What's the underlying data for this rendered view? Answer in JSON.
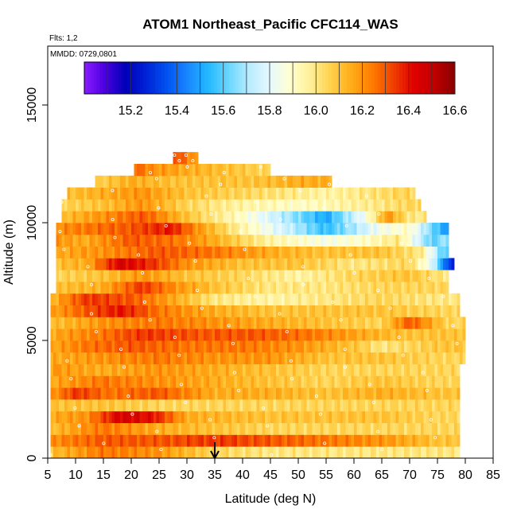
{
  "chart_data": {
    "type": "heatmap",
    "title": "ATOM1 Northeast_Pacific CFC114_WAS",
    "annotations": {
      "flights": "Flts: 1,2",
      "dates": "MMDD: 0729,0801"
    },
    "xlabel": "Latitude (deg N)",
    "ylabel": "Altitude (m)",
    "xlim": [
      5,
      85
    ],
    "ylim": [
      0,
      17500
    ],
    "xticks": [
      "5",
      "10",
      "15",
      "20",
      "25",
      "30",
      "35",
      "40",
      "45",
      "50",
      "55",
      "60",
      "65",
      "70",
      "75",
      "80",
      "85"
    ],
    "yticks": [
      "0",
      "5000",
      "10000",
      "15000"
    ],
    "colorbar": {
      "range": [
        15.0,
        16.6
      ],
      "ticks": [
        "15.2",
        "15.4",
        "15.6",
        "15.8",
        "16.0",
        "16.2",
        "16.4",
        "16.6"
      ],
      "colors": [
        "#8a1cff",
        "#4a00e0",
        "#0000b8",
        "#0022d8",
        "#0052f0",
        "#1a86ff",
        "#22b8ff",
        "#6ad6ff",
        "#b8ecff",
        "#e6f8ff",
        "#ffffd0",
        "#ffef96",
        "#ffd04a",
        "#ffac18",
        "#ff7a00",
        "#f04000",
        "#e00000",
        "#c00000",
        "#880000"
      ]
    },
    "marker": {
      "x": 35,
      "label": "arrow"
    },
    "row_height": 500,
    "rows": [
      {
        "y": 250,
        "x0": 5.5,
        "x1": 79,
        "k": [
          [
            5,
            16.1
          ],
          [
            15,
            16.25
          ],
          [
            25,
            16.2
          ],
          [
            35,
            16.05
          ],
          [
            45,
            16.0
          ],
          [
            55,
            16.0
          ],
          [
            65,
            16.0
          ],
          [
            75,
            16.0
          ]
        ]
      },
      {
        "y": 750,
        "x0": 5.5,
        "x1": 79,
        "k": [
          [
            5,
            16.2
          ],
          [
            15,
            16.3
          ],
          [
            25,
            16.3
          ],
          [
            35,
            16.35
          ],
          [
            45,
            16.3
          ],
          [
            55,
            16.25
          ],
          [
            65,
            16.2
          ],
          [
            75,
            16.1
          ]
        ]
      },
      {
        "y": 1250,
        "x0": 5.5,
        "x1": 79,
        "k": [
          [
            5,
            16.1
          ],
          [
            15,
            16.25
          ],
          [
            25,
            16.15
          ],
          [
            35,
            16.1
          ],
          [
            45,
            16.05
          ],
          [
            55,
            16.05
          ],
          [
            65,
            16.05
          ],
          [
            75,
            16.05
          ]
        ]
      },
      {
        "y": 1750,
        "x0": 5.5,
        "x1": 79,
        "k": [
          [
            5,
            16.15
          ],
          [
            12,
            16.2
          ],
          [
            18,
            16.45
          ],
          [
            24,
            16.4
          ],
          [
            30,
            16.15
          ],
          [
            45,
            16.1
          ],
          [
            55,
            16.1
          ],
          [
            65,
            16.1
          ],
          [
            75,
            16.05
          ]
        ]
      },
      {
        "y": 2250,
        "x0": 5.5,
        "x1": 79,
        "k": [
          [
            5,
            16.1
          ],
          [
            15,
            16.1
          ],
          [
            25,
            16.05
          ],
          [
            35,
            16.05
          ],
          [
            45,
            16.05
          ],
          [
            55,
            16.05
          ],
          [
            65,
            16.05
          ],
          [
            75,
            16.05
          ]
        ]
      },
      {
        "y": 2750,
        "x0": 5.5,
        "x1": 79,
        "k": [
          [
            5,
            16.15
          ],
          [
            10,
            16.35
          ],
          [
            16,
            16.25
          ],
          [
            25,
            16.3
          ],
          [
            35,
            16.15
          ],
          [
            45,
            16.15
          ],
          [
            55,
            16.1
          ],
          [
            65,
            16.15
          ],
          [
            75,
            16.1
          ]
        ]
      },
      {
        "y": 3250,
        "x0": 5.5,
        "x1": 79,
        "k": [
          [
            5,
            16.15
          ],
          [
            15,
            16.25
          ],
          [
            25,
            16.2
          ],
          [
            35,
            16.15
          ],
          [
            45,
            16.1
          ],
          [
            55,
            16.05
          ],
          [
            65,
            16.1
          ],
          [
            75,
            16.05
          ]
        ]
      },
      {
        "y": 3750,
        "x0": 5.5,
        "x1": 79,
        "k": [
          [
            5,
            16.2
          ],
          [
            15,
            16.15
          ],
          [
            25,
            16.2
          ],
          [
            35,
            16.15
          ],
          [
            45,
            16.1
          ],
          [
            55,
            16.05
          ],
          [
            65,
            16.05
          ],
          [
            75,
            16.05
          ]
        ]
      },
      {
        "y": 4250,
        "x0": 5.5,
        "x1": 80,
        "k": [
          [
            5,
            16.15
          ],
          [
            15,
            16.2
          ],
          [
            25,
            16.25
          ],
          [
            35,
            16.2
          ],
          [
            45,
            16.2
          ],
          [
            55,
            16.1
          ],
          [
            65,
            16.1
          ],
          [
            75,
            16.05
          ]
        ]
      },
      {
        "y": 4750,
        "x0": 5.5,
        "x1": 80,
        "k": [
          [
            5,
            16.15
          ],
          [
            12,
            16.25
          ],
          [
            20,
            16.3
          ],
          [
            30,
            16.25
          ],
          [
            40,
            16.25
          ],
          [
            50,
            16.2
          ],
          [
            60,
            16.1
          ],
          [
            65,
            16.0
          ],
          [
            70,
            16.05
          ],
          [
            77,
            16.1
          ]
        ]
      },
      {
        "y": 5250,
        "x0": 5.5,
        "x1": 80,
        "k": [
          [
            5,
            16.15
          ],
          [
            15,
            16.25
          ],
          [
            22,
            16.35
          ],
          [
            32,
            16.3
          ],
          [
            42,
            16.3
          ],
          [
            52,
            16.25
          ],
          [
            62,
            16.15
          ],
          [
            70,
            16.1
          ],
          [
            77,
            16.1
          ]
        ]
      },
      {
        "y": 5750,
        "x0": 5.5,
        "x1": 80,
        "k": [
          [
            5,
            16.1
          ],
          [
            15,
            16.2
          ],
          [
            25,
            16.25
          ],
          [
            35,
            16.2
          ],
          [
            45,
            16.15
          ],
          [
            55,
            16.1
          ],
          [
            65,
            16.05
          ],
          [
            70,
            16.3
          ],
          [
            77,
            16.05
          ]
        ]
      },
      {
        "y": 6250,
        "x0": 5.5,
        "x1": 79,
        "k": [
          [
            5,
            16.15
          ],
          [
            12,
            16.3
          ],
          [
            18,
            16.4
          ],
          [
            25,
            16.25
          ],
          [
            35,
            16.15
          ],
          [
            45,
            16.1
          ],
          [
            55,
            16.1
          ],
          [
            65,
            16.1
          ],
          [
            75,
            16.05
          ]
        ]
      },
      {
        "y": 6750,
        "x0": 5.5,
        "x1": 79,
        "k": [
          [
            5,
            16.1
          ],
          [
            12,
            16.35
          ],
          [
            20,
            16.3
          ],
          [
            28,
            16.15
          ],
          [
            35,
            16.0
          ],
          [
            45,
            15.95
          ],
          [
            55,
            16.0
          ],
          [
            65,
            16.05
          ],
          [
            75,
            16.0
          ]
        ]
      },
      {
        "y": 7250,
        "x0": 6.5,
        "x1": 77,
        "k": [
          [
            6,
            16.1
          ],
          [
            15,
            16.15
          ],
          [
            22,
            16.35
          ],
          [
            28,
            16.2
          ],
          [
            35,
            16.1
          ],
          [
            45,
            16.0
          ],
          [
            55,
            16.0
          ],
          [
            65,
            16.05
          ],
          [
            75,
            16.05
          ]
        ]
      },
      {
        "y": 7750,
        "x0": 6.5,
        "x1": 77,
        "k": [
          [
            6,
            16.05
          ],
          [
            15,
            16.1
          ],
          [
            22,
            16.2
          ],
          [
            30,
            16.1
          ],
          [
            40,
            16.05
          ],
          [
            50,
            15.95
          ],
          [
            60,
            16.05
          ],
          [
            70,
            16.1
          ],
          [
            76,
            16.0
          ]
        ]
      },
      {
        "y": 8250,
        "x0": 6.5,
        "x1": 78,
        "k": [
          [
            6,
            16.1
          ],
          [
            12,
            16.15
          ],
          [
            18,
            16.45
          ],
          [
            24,
            16.35
          ],
          [
            30,
            16.2
          ],
          [
            40,
            16.1
          ],
          [
            50,
            16.1
          ],
          [
            60,
            16.0
          ],
          [
            70,
            16.05
          ],
          [
            74,
            15.8
          ],
          [
            77,
            15.3
          ]
        ]
      },
      {
        "y": 8750,
        "x0": 6.5,
        "x1": 77,
        "k": [
          [
            6,
            16.15
          ],
          [
            15,
            16.2
          ],
          [
            25,
            16.3
          ],
          [
            35,
            16.25
          ],
          [
            45,
            16.15
          ],
          [
            55,
            16.1
          ],
          [
            65,
            16.1
          ],
          [
            72,
            16.0
          ],
          [
            76,
            15.6
          ]
        ]
      },
      {
        "y": 9250,
        "x0": 6.5,
        "x1": 77,
        "k": [
          [
            6,
            16.2
          ],
          [
            12,
            16.15
          ],
          [
            20,
            16.3
          ],
          [
            28,
            16.25
          ],
          [
            35,
            16.15
          ],
          [
            45,
            15.95
          ],
          [
            55,
            15.85
          ],
          [
            62,
            15.9
          ],
          [
            68,
            16.0
          ],
          [
            74,
            15.6
          ],
          [
            77,
            15.7
          ]
        ]
      },
      {
        "y": 9750,
        "x0": 6.5,
        "x1": 77,
        "k": [
          [
            6,
            16.2
          ],
          [
            12,
            16.25
          ],
          [
            20,
            16.3
          ],
          [
            27,
            16.4
          ],
          [
            32,
            16.2
          ],
          [
            40,
            15.95
          ],
          [
            48,
            15.75
          ],
          [
            55,
            15.55
          ],
          [
            60,
            15.7
          ],
          [
            65,
            15.85
          ],
          [
            70,
            15.9
          ],
          [
            76,
            15.5
          ]
        ]
      },
      {
        "y": 10250,
        "x0": 7.5,
        "x1": 73,
        "k": [
          [
            7,
            16.1
          ],
          [
            15,
            16.2
          ],
          [
            22,
            16.3
          ],
          [
            30,
            16.1
          ],
          [
            40,
            15.9
          ],
          [
            48,
            15.7
          ],
          [
            55,
            15.5
          ],
          [
            62,
            15.85
          ],
          [
            66,
            16.2
          ],
          [
            70,
            16.0
          ]
        ]
      },
      {
        "y": 10750,
        "x0": 7.5,
        "x1": 72,
        "k": [
          [
            7,
            16.05
          ],
          [
            15,
            16.1
          ],
          [
            22,
            16.2
          ],
          [
            30,
            16.05
          ],
          [
            40,
            15.95
          ],
          [
            50,
            15.9
          ],
          [
            58,
            15.95
          ],
          [
            65,
            16.0
          ],
          [
            70,
            16.05
          ]
        ]
      },
      {
        "y": 11250,
        "x0": 8.5,
        "x1": 71,
        "k": [
          [
            8,
            16.1
          ],
          [
            15,
            16.15
          ],
          [
            22,
            16.2
          ],
          [
            30,
            16.1
          ],
          [
            40,
            16.05
          ],
          [
            48,
            16.0
          ],
          [
            55,
            15.95
          ],
          [
            62,
            16.0
          ],
          [
            68,
            16.05
          ]
        ]
      },
      {
        "y": 11750,
        "x0": 13.5,
        "x1": 56,
        "k": [
          [
            13,
            16.05
          ],
          [
            20,
            16.15
          ],
          [
            28,
            16.1
          ],
          [
            35,
            16.1
          ],
          [
            42,
            16.1
          ],
          [
            50,
            16.15
          ],
          [
            55,
            16.15
          ]
        ]
      },
      {
        "y": 12250,
        "x0": 20.5,
        "x1": 45,
        "k": [
          [
            20,
            16.3
          ],
          [
            24,
            16.2
          ],
          [
            30,
            16.15
          ],
          [
            38,
            16.1
          ],
          [
            44,
            16.05
          ]
        ]
      },
      {
        "y": 12750,
        "x0": 27.5,
        "x1": 32,
        "k": [
          [
            27,
            16.35
          ],
          [
            30,
            16.25
          ],
          [
            32,
            16.15
          ]
        ]
      }
    ]
  }
}
